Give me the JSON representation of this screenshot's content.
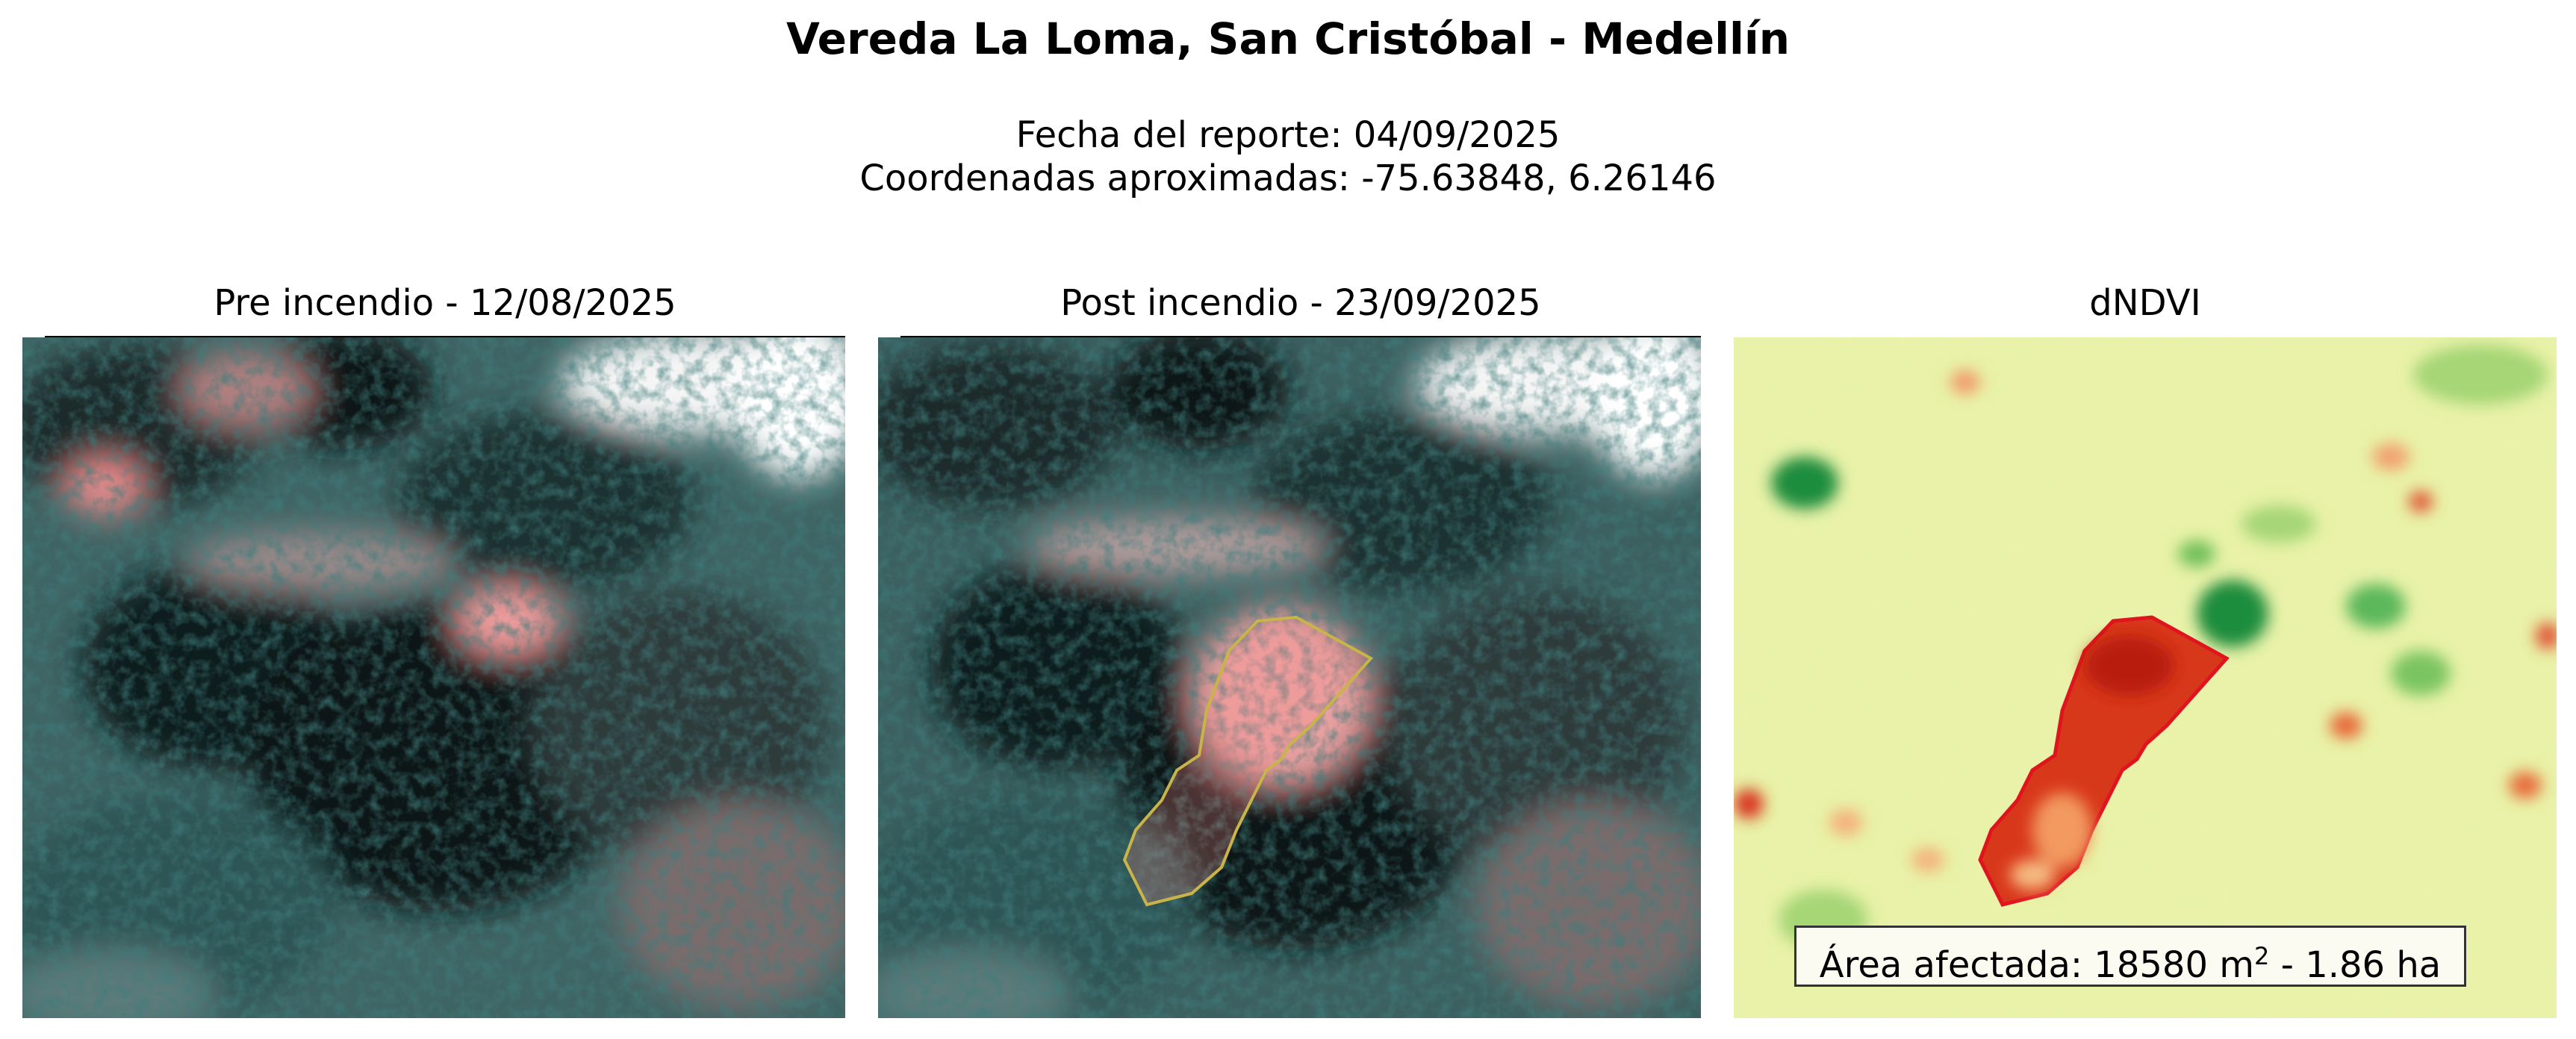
{
  "header": {
    "title": "Vereda La Loma, San Cristóbal - Medellín",
    "report_date": "Fecha del reporte: 04/09/2025",
    "coordinates": "Coordenadas aproximadas: -75.63848, 6.26146"
  },
  "panels": [
    {
      "title": "Pre incendio - 12/08/2025",
      "image": "false-color satellite image before fire"
    },
    {
      "title": "Post incendio - 23/09/2025",
      "image": "false-color satellite image after fire with burn scar outlined"
    },
    {
      "title": "dNDVI",
      "image": "dNDVI change map, red = vegetation loss, green = gain"
    }
  ],
  "affected_area": {
    "prefix": "Área afectada: 18580 m",
    "superscript": "2",
    "suffix": " - 1.86 ha"
  },
  "colors": {
    "burn_outline_post": "#c8b448",
    "burn_outline_dndvi": "#e0141e",
    "dndvi_background": "#e8f2a8",
    "dndvi_loss": "#c8280a",
    "dndvi_gain": "#1e8c3c"
  }
}
